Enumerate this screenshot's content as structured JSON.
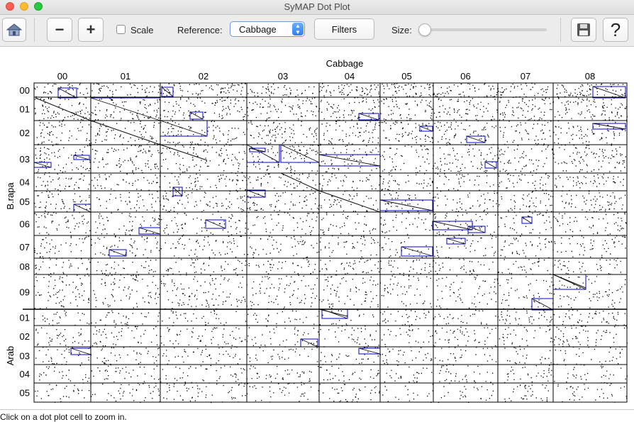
{
  "window": {
    "title": "SyMAP Dot Plot"
  },
  "toolbar": {
    "home_icon": "home-icon",
    "zoom_out_label": "−",
    "zoom_in_label": "+",
    "scale_label": "Scale",
    "scale_checked": false,
    "reference_label": "Reference:",
    "reference_value": "Cabbage",
    "filters_label": "Filters",
    "size_label": "Size:",
    "size_value": 0,
    "save_icon": "save-icon",
    "help_label": "?"
  },
  "plot": {
    "x_title": "Cabbage",
    "x_chromosomes": [
      "00",
      "01",
      "02",
      "03",
      "04",
      "05",
      "06",
      "07",
      "08"
    ],
    "y_groups": [
      {
        "title": "B.rapa",
        "chromosomes": [
          "00",
          "01",
          "02",
          "03",
          "04",
          "05",
          "06",
          "07",
          "08",
          "09"
        ]
      },
      {
        "title": "Arab",
        "chromosomes": [
          "01",
          "02",
          "03",
          "04",
          "05"
        ]
      }
    ],
    "colors": {
      "dots": "#000000",
      "blocks": "#0000cc",
      "grid": "#000000"
    }
  },
  "status": {
    "message": "Click on a dot plot cell to zoom in."
  }
}
